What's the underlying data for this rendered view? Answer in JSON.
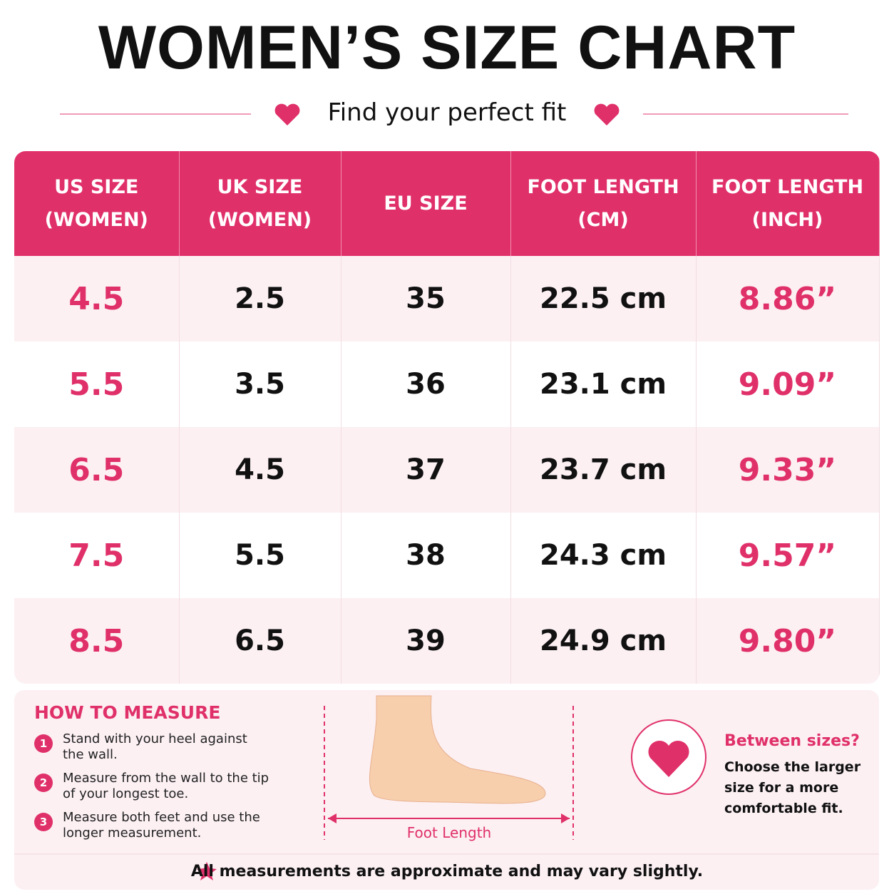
{
  "header": {
    "title": "WOMEN’S SIZE CHART",
    "subtitle": "Find your perfect fit"
  },
  "table": {
    "headers": [
      [
        "US SIZE",
        "(WOMEN)"
      ],
      [
        "UK SIZE",
        "(WOMEN)"
      ],
      [
        "EU SIZE"
      ],
      [
        "FOOT LENGTH",
        "(CM)"
      ],
      [
        "FOOT LENGTH",
        "(INCH)"
      ]
    ],
    "rows": [
      [
        "4.5",
        "2.5",
        "35",
        "22.5 cm",
        "8.86”"
      ],
      [
        "5.5",
        "3.5",
        "36",
        "23.1 cm",
        "9.09”"
      ],
      [
        "6.5",
        "4.5",
        "37",
        "23.7 cm",
        "9.33”"
      ],
      [
        "7.5",
        "5.5",
        "38",
        "24.3 cm",
        "9.57”"
      ],
      [
        "8.5",
        "6.5",
        "39",
        "24.9 cm",
        "9.80”"
      ]
    ]
  },
  "measure": {
    "title": "HOW TO MEASURE",
    "steps": [
      {
        "number": "1",
        "text": "Stand with your heel against the wall."
      },
      {
        "number": "2",
        "text": "Measure from the wall to the tip of your longest toe."
      },
      {
        "number": "3",
        "text": "Measure both feet and use the longer measurement."
      }
    ],
    "diagram_label": "Foot Length"
  },
  "tip": {
    "title": "Between sizes?",
    "text": "Choose the larger size for a more comfortable fit."
  },
  "footer": {
    "note": "All measurements are approximate and may vary slightly."
  }
}
